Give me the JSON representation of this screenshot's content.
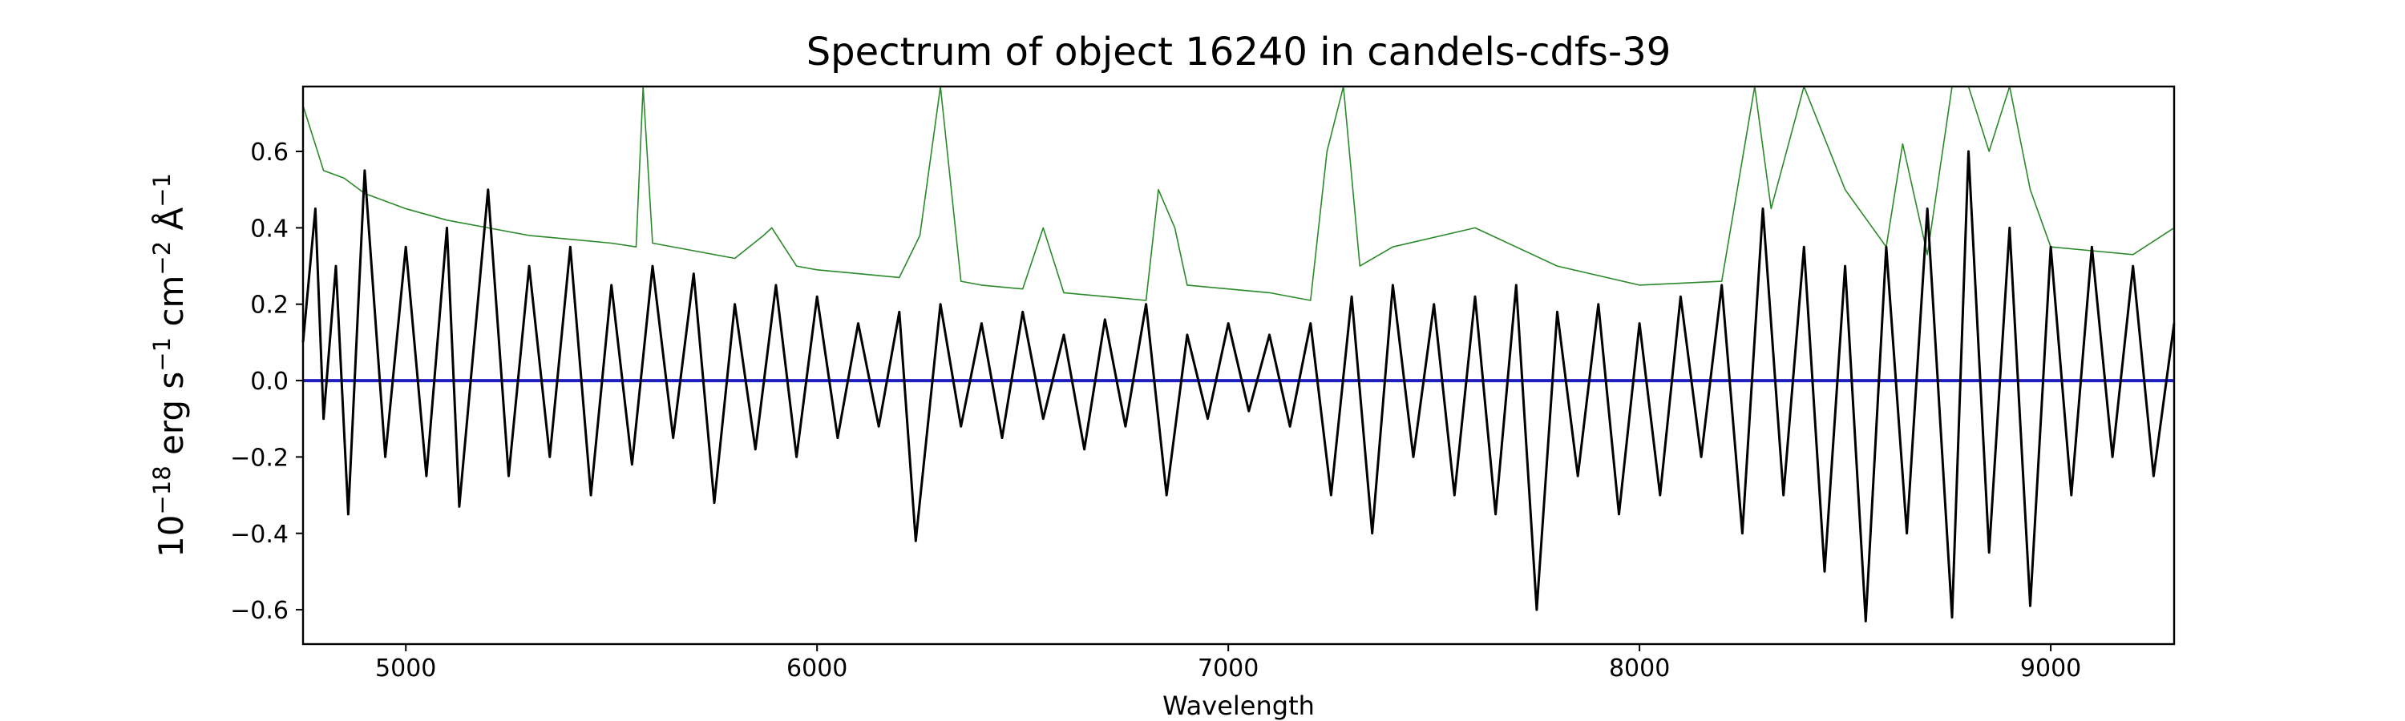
{
  "chart_data": {
    "type": "line",
    "title": "Spectrum of object 16240 in candels-cdfs-39",
    "xlabel": "Wavelength",
    "ylabel_parts": [
      "10",
      "−18",
      " erg s",
      "−1",
      " cm",
      "−2",
      " Å",
      "−1"
    ],
    "xlim": [
      4750,
      9300
    ],
    "ylim": [
      -0.69,
      0.77
    ],
    "xticks": [
      5000,
      6000,
      7000,
      8000,
      9000
    ],
    "xtick_labels": [
      "5000",
      "6000",
      "7000",
      "8000",
      "9000"
    ],
    "yticks": [
      -0.6,
      -0.4,
      -0.2,
      0.0,
      0.2,
      0.4,
      0.6
    ],
    "ytick_labels": [
      "−0.6",
      "−0.4",
      "−0.2",
      "0.0",
      "0.2",
      "0.4",
      "0.6"
    ],
    "grid": false,
    "colors": {
      "flux": "#000000",
      "error": "#2a8a2a",
      "model": "#1f1fbf",
      "axes": "#000000"
    },
    "series": [
      {
        "role": "error",
        "x": [
          4750,
          4800,
          4850,
          4900,
          5000,
          5100,
          5200,
          5300,
          5400,
          5500,
          5560,
          5577,
          5600,
          5700,
          5800,
          5870,
          5890,
          5950,
          6000,
          6100,
          6200,
          6250,
          6300,
          6350,
          6400,
          6500,
          6550,
          6600,
          6700,
          6800,
          6830,
          6870,
          6900,
          7000,
          7100,
          7200,
          7240,
          7280,
          7320,
          7400,
          7600,
          7800,
          8000,
          8200,
          8280,
          8320,
          8400,
          8500,
          8600,
          8640,
          8700,
          8760,
          8800,
          8850,
          8900,
          8950,
          9000,
          9100,
          9200,
          9300
        ],
        "values": [
          0.72,
          0.55,
          0.53,
          0.49,
          0.45,
          0.42,
          0.4,
          0.38,
          0.37,
          0.36,
          0.35,
          0.77,
          0.36,
          0.34,
          0.32,
          0.38,
          0.4,
          0.3,
          0.29,
          0.28,
          0.27,
          0.38,
          0.77,
          0.26,
          0.25,
          0.24,
          0.4,
          0.23,
          0.22,
          0.21,
          0.5,
          0.4,
          0.25,
          0.24,
          0.23,
          0.21,
          0.6,
          0.77,
          0.3,
          0.35,
          0.4,
          0.3,
          0.25,
          0.26,
          0.77,
          0.45,
          0.77,
          0.5,
          0.35,
          0.62,
          0.33,
          0.77,
          0.77,
          0.6,
          0.77,
          0.5,
          0.35,
          0.34,
          0.33,
          0.4
        ]
      },
      {
        "role": "flux",
        "x": [
          4750,
          4780,
          4800,
          4830,
          4860,
          4900,
          4950,
          5000,
          5050,
          5100,
          5130,
          5200,
          5250,
          5300,
          5350,
          5400,
          5450,
          5500,
          5550,
          5600,
          5650,
          5700,
          5750,
          5800,
          5850,
          5900,
          5950,
          6000,
          6050,
          6100,
          6150,
          6200,
          6240,
          6300,
          6350,
          6400,
          6450,
          6500,
          6550,
          6600,
          6650,
          6700,
          6750,
          6800,
          6850,
          6900,
          6950,
          7000,
          7050,
          7100,
          7150,
          7200,
          7250,
          7300,
          7350,
          7400,
          7450,
          7500,
          7550,
          7600,
          7650,
          7700,
          7750,
          7800,
          7850,
          7900,
          7950,
          8000,
          8050,
          8100,
          8150,
          8200,
          8250,
          8300,
          8350,
          8400,
          8450,
          8500,
          8550,
          8600,
          8650,
          8700,
          8760,
          8800,
          8850,
          8900,
          8950,
          9000,
          9050,
          9100,
          9150,
          9200,
          9250,
          9300
        ],
        "values": [
          0.1,
          0.45,
          -0.1,
          0.3,
          -0.35,
          0.55,
          -0.2,
          0.35,
          -0.25,
          0.4,
          -0.33,
          0.5,
          -0.25,
          0.3,
          -0.2,
          0.35,
          -0.3,
          0.25,
          -0.22,
          0.3,
          -0.15,
          0.28,
          -0.32,
          0.2,
          -0.18,
          0.25,
          -0.2,
          0.22,
          -0.15,
          0.15,
          -0.12,
          0.18,
          -0.42,
          0.2,
          -0.12,
          0.15,
          -0.15,
          0.18,
          -0.1,
          0.12,
          -0.18,
          0.16,
          -0.12,
          0.2,
          -0.3,
          0.12,
          -0.1,
          0.15,
          -0.08,
          0.12,
          -0.12,
          0.15,
          -0.3,
          0.22,
          -0.4,
          0.25,
          -0.2,
          0.2,
          -0.3,
          0.22,
          -0.35,
          0.25,
          -0.6,
          0.18,
          -0.25,
          0.2,
          -0.35,
          0.15,
          -0.3,
          0.22,
          -0.2,
          0.25,
          -0.4,
          0.45,
          -0.3,
          0.35,
          -0.5,
          0.3,
          -0.63,
          0.35,
          -0.4,
          0.45,
          -0.62,
          0.6,
          -0.45,
          0.4,
          -0.59,
          0.35,
          -0.3,
          0.35,
          -0.2,
          0.3,
          -0.25,
          0.15
        ]
      },
      {
        "role": "model",
        "x": [
          4750,
          9300
        ],
        "values": [
          0.0,
          0.0
        ]
      }
    ]
  }
}
